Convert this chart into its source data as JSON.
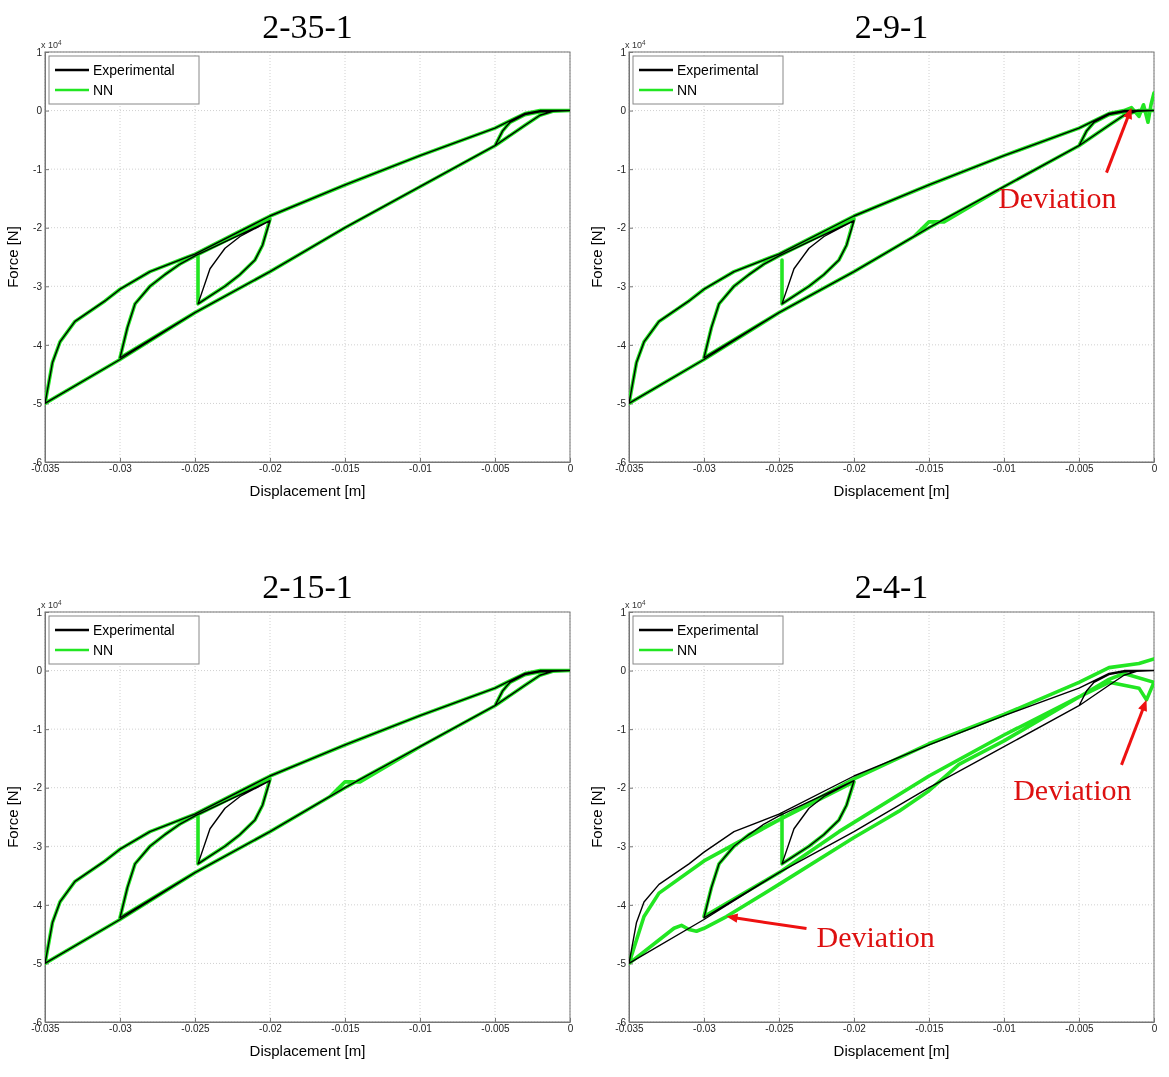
{
  "chart_data": [
    {
      "type": "line",
      "title": "2-35-1",
      "xlabel": "Displacement [m]",
      "ylabel": "Force [N]",
      "xlim": [
        -0.035,
        0
      ],
      "ylim": [
        -6,
        1
      ],
      "xticks": [
        -0.035,
        -0.03,
        -0.025,
        -0.02,
        -0.015,
        -0.01,
        -0.005,
        0
      ],
      "yticks": [
        -6,
        -5,
        -4,
        -3,
        -2,
        -1,
        0,
        1
      ],
      "grid": true,
      "legend": "top left",
      "annotations": [
        "x 10$^{4}$"
      ],
      "series": [
        {
          "name": "Experimental",
          "color": "#000000",
          "x": [
            0,
            -0.002,
            -0.003,
            -0.005,
            -0.01,
            -0.015,
            -0.02,
            -0.025,
            -0.028,
            -0.03,
            -0.031,
            -0.033,
            -0.034,
            -0.0345,
            -0.035,
            -0.03,
            -0.025,
            -0.02,
            -0.015,
            -0.01,
            -0.005,
            -0.003,
            -0.002,
            -0.001,
            0,
            -0.002,
            -0.003,
            -0.004,
            -0.0045,
            -0.005,
            -0.01,
            -0.015,
            -0.02,
            -0.025,
            -0.03,
            -0.0295,
            -0.029,
            -0.028,
            -0.027,
            -0.026,
            -0.025,
            -0.02,
            -0.0205,
            -0.021,
            -0.022,
            -0.023,
            -0.0248,
            -0.024,
            -0.023,
            -0.022,
            -0.02
          ],
          "values": [
            0,
            0,
            -0.05,
            -0.3,
            -0.77,
            -1.27,
            -1.8,
            -2.45,
            -2.75,
            -3.05,
            -3.25,
            -3.6,
            -3.95,
            -4.3,
            -5,
            -4.25,
            -3.45,
            -2.75,
            -2,
            -1.3,
            -0.6,
            -0.25,
            -0.08,
            0,
            0,
            -0.02,
            -0.07,
            -0.2,
            -0.35,
            -0.6,
            -1.3,
            -2,
            -2.75,
            -3.45,
            -4.22,
            -3.7,
            -3.3,
            -3,
            -2.8,
            -2.62,
            -2.48,
            -1.88,
            -2.3,
            -2.55,
            -2.8,
            -3,
            -3.3,
            -2.7,
            -2.35,
            -2.15,
            -1.88
          ]
        },
        {
          "name": "NN",
          "color": "#22e622",
          "x": [
            0,
            -0.002,
            -0.003,
            -0.005,
            -0.01,
            -0.015,
            -0.02,
            -0.025,
            -0.028,
            -0.03,
            -0.031,
            -0.033,
            -0.034,
            -0.0345,
            -0.035,
            -0.03,
            -0.025,
            -0.02,
            -0.015,
            -0.01,
            -0.005,
            -0.003,
            -0.002,
            -0.001,
            0,
            -0.002,
            -0.003,
            -0.004,
            -0.0045,
            -0.005,
            -0.01,
            -0.015,
            -0.02,
            -0.025,
            -0.03,
            -0.0295,
            -0.029,
            -0.028,
            -0.027,
            -0.026,
            -0.025,
            -0.02,
            -0.0205,
            -0.021,
            -0.022,
            -0.023,
            -0.0248,
            -0.0248
          ],
          "values": [
            0,
            0,
            -0.05,
            -0.3,
            -0.77,
            -1.27,
            -1.8,
            -2.45,
            -2.75,
            -3.05,
            -3.25,
            -3.6,
            -3.95,
            -4.3,
            -5,
            -4.25,
            -3.45,
            -2.75,
            -2,
            -1.3,
            -0.6,
            -0.25,
            -0.08,
            0,
            0,
            -0.02,
            -0.07,
            -0.2,
            -0.35,
            -0.6,
            -1.3,
            -2,
            -2.75,
            -3.45,
            -4.22,
            -3.7,
            -3.3,
            -3,
            -2.8,
            -2.62,
            -2.48,
            -1.85,
            -2.3,
            -2.55,
            -2.8,
            -3,
            -3.3,
            -2.45
          ]
        }
      ]
    },
    {
      "type": "line",
      "title": "2-9-1",
      "xlabel": "Displacement [m]",
      "ylabel": "Force [N]",
      "xlim": [
        -0.035,
        0
      ],
      "ylim": [
        -6,
        1
      ],
      "xticks": [
        -0.035,
        -0.03,
        -0.025,
        -0.02,
        -0.015,
        -0.01,
        -0.005,
        0
      ],
      "yticks": [
        -6,
        -5,
        -4,
        -3,
        -2,
        -1,
        0,
        1
      ],
      "grid": true,
      "legend": "top left",
      "annotations": [
        "x 10$^{4}$",
        {
          "text": "Deviation",
          "x": -0.0015,
          "y": 0.05
        }
      ],
      "series": [
        {
          "name": "Experimental",
          "color": "#000000",
          "x": [
            0,
            -0.002,
            -0.003,
            -0.005,
            -0.01,
            -0.015,
            -0.02,
            -0.025,
            -0.028,
            -0.03,
            -0.031,
            -0.033,
            -0.034,
            -0.0345,
            -0.035,
            -0.03,
            -0.025,
            -0.02,
            -0.015,
            -0.01,
            -0.005,
            -0.003,
            -0.002,
            -0.001,
            0,
            -0.002,
            -0.003,
            -0.004,
            -0.0045,
            -0.005,
            -0.01,
            -0.015,
            -0.02,
            -0.025,
            -0.03,
            -0.0295,
            -0.029,
            -0.028,
            -0.027,
            -0.026,
            -0.025,
            -0.02,
            -0.0205,
            -0.021,
            -0.022,
            -0.023,
            -0.0248,
            -0.024,
            -0.023,
            -0.022,
            -0.02
          ],
          "values": [
            0,
            0,
            -0.05,
            -0.3,
            -0.77,
            -1.27,
            -1.8,
            -2.45,
            -2.75,
            -3.05,
            -3.25,
            -3.6,
            -3.95,
            -4.3,
            -5,
            -4.25,
            -3.45,
            -2.75,
            -2,
            -1.3,
            -0.6,
            -0.25,
            -0.08,
            0,
            0,
            -0.02,
            -0.07,
            -0.2,
            -0.35,
            -0.6,
            -1.3,
            -2,
            -2.75,
            -3.45,
            -4.22,
            -3.7,
            -3.3,
            -3,
            -2.8,
            -2.62,
            -2.48,
            -1.88,
            -2.3,
            -2.55,
            -2.8,
            -3,
            -3.3,
            -2.7,
            -2.35,
            -2.15,
            -1.88
          ]
        },
        {
          "name": "NN",
          "color": "#22e622",
          "x": [
            0,
            -0.0002,
            -0.0004,
            -0.0007,
            -0.001,
            -0.0015,
            -0.002,
            -0.003,
            -0.005,
            -0.01,
            -0.015,
            -0.02,
            -0.025,
            -0.028,
            -0.03,
            -0.031,
            -0.033,
            -0.034,
            -0.0345,
            -0.035,
            -0.03,
            -0.025,
            -0.02,
            -0.016,
            -0.015,
            -0.014,
            -0.01,
            -0.005,
            -0.003,
            -0.002,
            -0.001,
            0,
            -0.002,
            -0.003,
            -0.004,
            -0.0045,
            -0.005,
            -0.01,
            -0.015,
            -0.02,
            -0.025,
            -0.03,
            -0.0295,
            -0.029,
            -0.028,
            -0.027,
            -0.026,
            -0.025,
            -0.02,
            -0.0205,
            -0.021,
            -0.022,
            -0.023,
            -0.0248,
            -0.0248
          ],
          "values": [
            0.3,
            0.1,
            -0.2,
            0.1,
            -0.1,
            0.05,
            0,
            -0.05,
            -0.3,
            -0.77,
            -1.27,
            -1.8,
            -2.45,
            -2.75,
            -3.05,
            -3.25,
            -3.6,
            -3.95,
            -4.3,
            -5,
            -4.25,
            -3.45,
            -2.75,
            -2.15,
            -1.9,
            -1.9,
            -1.3,
            -0.6,
            -0.25,
            -0.08,
            0,
            0,
            -0.02,
            -0.07,
            -0.2,
            -0.35,
            -0.6,
            -1.3,
            -2,
            -2.75,
            -3.45,
            -4.22,
            -3.7,
            -3.3,
            -3,
            -2.8,
            -2.62,
            -2.48,
            -1.85,
            -2.3,
            -2.55,
            -2.8,
            -3,
            -3.3,
            -2.55
          ]
        }
      ]
    },
    {
      "type": "line",
      "title": "2-15-1",
      "xlabel": "Displacement [m]",
      "ylabel": "Force [N]",
      "xlim": [
        -0.035,
        0
      ],
      "ylim": [
        -6,
        1
      ],
      "xticks": [
        -0.035,
        -0.03,
        -0.025,
        -0.02,
        -0.015,
        -0.01,
        -0.005,
        0
      ],
      "yticks": [
        -6,
        -5,
        -4,
        -3,
        -2,
        -1,
        0,
        1
      ],
      "grid": true,
      "legend": "top left",
      "annotations": [
        "x 10$^{4}$"
      ],
      "series": [
        {
          "name": "Experimental",
          "color": "#000000",
          "x": [
            0,
            -0.002,
            -0.003,
            -0.005,
            -0.01,
            -0.015,
            -0.02,
            -0.025,
            -0.028,
            -0.03,
            -0.031,
            -0.033,
            -0.034,
            -0.0345,
            -0.035,
            -0.03,
            -0.025,
            -0.02,
            -0.015,
            -0.01,
            -0.005,
            -0.003,
            -0.002,
            -0.001,
            0,
            -0.002,
            -0.003,
            -0.004,
            -0.0045,
            -0.005,
            -0.01,
            -0.015,
            -0.02,
            -0.025,
            -0.03,
            -0.0295,
            -0.029,
            -0.028,
            -0.027,
            -0.026,
            -0.025,
            -0.02,
            -0.0205,
            -0.021,
            -0.022,
            -0.023,
            -0.0248,
            -0.024,
            -0.023,
            -0.022,
            -0.02
          ],
          "values": [
            0,
            0,
            -0.05,
            -0.3,
            -0.77,
            -1.27,
            -1.8,
            -2.45,
            -2.75,
            -3.05,
            -3.25,
            -3.6,
            -3.95,
            -4.3,
            -5,
            -4.25,
            -3.45,
            -2.75,
            -2,
            -1.3,
            -0.6,
            -0.25,
            -0.08,
            0,
            0,
            -0.02,
            -0.07,
            -0.2,
            -0.35,
            -0.6,
            -1.3,
            -2,
            -2.75,
            -3.45,
            -4.22,
            -3.7,
            -3.3,
            -3,
            -2.8,
            -2.62,
            -2.48,
            -1.88,
            -2.3,
            -2.55,
            -2.8,
            -3,
            -3.3,
            -2.7,
            -2.35,
            -2.15,
            -1.88
          ]
        },
        {
          "name": "NN",
          "color": "#22e622",
          "x": [
            0,
            -0.002,
            -0.003,
            -0.005,
            -0.01,
            -0.015,
            -0.02,
            -0.025,
            -0.028,
            -0.03,
            -0.031,
            -0.033,
            -0.034,
            -0.0345,
            -0.035,
            -0.03,
            -0.025,
            -0.02,
            -0.016,
            -0.015,
            -0.014,
            -0.01,
            -0.005,
            -0.003,
            -0.002,
            -0.001,
            0,
            -0.002,
            -0.003,
            -0.004,
            -0.0045,
            -0.005,
            -0.01,
            -0.015,
            -0.02,
            -0.025,
            -0.03,
            -0.0295,
            -0.029,
            -0.028,
            -0.027,
            -0.026,
            -0.025,
            -0.02,
            -0.0205,
            -0.021,
            -0.022,
            -0.023,
            -0.0248,
            -0.0248
          ],
          "values": [
            0,
            0,
            -0.05,
            -0.3,
            -0.77,
            -1.27,
            -1.8,
            -2.45,
            -2.75,
            -3.05,
            -3.25,
            -3.6,
            -3.95,
            -4.3,
            -5,
            -4.25,
            -3.45,
            -2.75,
            -2.15,
            -1.9,
            -1.9,
            -1.3,
            -0.6,
            -0.25,
            -0.08,
            0,
            0,
            -0.02,
            -0.07,
            -0.2,
            -0.35,
            -0.6,
            -1.3,
            -2,
            -2.75,
            -3.45,
            -4.22,
            -3.7,
            -3.3,
            -3,
            -2.8,
            -2.62,
            -2.48,
            -1.85,
            -2.3,
            -2.55,
            -2.8,
            -3,
            -3.3,
            -2.45
          ]
        }
      ]
    },
    {
      "type": "line",
      "title": "2-4-1",
      "xlabel": "Displacement [m]",
      "ylabel": "Force [N]",
      "xlim": [
        -0.035,
        0
      ],
      "ylim": [
        -6,
        1
      ],
      "xticks": [
        -0.035,
        -0.03,
        -0.025,
        -0.02,
        -0.015,
        -0.01,
        -0.005,
        0
      ],
      "yticks": [
        -6,
        -5,
        -4,
        -3,
        -2,
        -1,
        0,
        1
      ],
      "grid": true,
      "legend": "top left",
      "annotations": [
        "x 10$^{4}$",
        {
          "text": "Deviation",
          "x": -0.0005,
          "y": -0.5
        },
        {
          "text": "Deviation",
          "x": -0.0285,
          "y": -4.2
        }
      ],
      "series": [
        {
          "name": "Experimental",
          "color": "#000000",
          "x": [
            0,
            -0.002,
            -0.003,
            -0.005,
            -0.01,
            -0.015,
            -0.02,
            -0.025,
            -0.028,
            -0.03,
            -0.031,
            -0.033,
            -0.034,
            -0.0345,
            -0.035,
            -0.03,
            -0.025,
            -0.02,
            -0.015,
            -0.01,
            -0.005,
            -0.003,
            -0.002,
            -0.001,
            0,
            -0.002,
            -0.003,
            -0.004,
            -0.0045,
            -0.005,
            -0.01,
            -0.015,
            -0.02,
            -0.025,
            -0.03,
            -0.0295,
            -0.029,
            -0.028,
            -0.027,
            -0.026,
            -0.025,
            -0.02,
            -0.0205,
            -0.021,
            -0.022,
            -0.023,
            -0.0248,
            -0.024,
            -0.023,
            -0.022,
            -0.02
          ],
          "values": [
            0,
            0,
            -0.05,
            -0.3,
            -0.77,
            -1.27,
            -1.8,
            -2.45,
            -2.75,
            -3.1,
            -3.3,
            -3.65,
            -3.95,
            -4.3,
            -5,
            -4.25,
            -3.45,
            -2.75,
            -2,
            -1.3,
            -0.6,
            -0.25,
            -0.08,
            0,
            0,
            -0.02,
            -0.07,
            -0.2,
            -0.35,
            -0.6,
            -1.3,
            -2,
            -2.75,
            -3.45,
            -4.22,
            -3.7,
            -3.3,
            -3,
            -2.8,
            -2.62,
            -2.48,
            -1.88,
            -2.3,
            -2.55,
            -2.8,
            -3,
            -3.3,
            -2.7,
            -2.35,
            -2.15,
            -1.88
          ]
        },
        {
          "name": "NN",
          "color": "#22e622",
          "x": [
            0,
            -0.001,
            -0.003,
            -0.005,
            -0.01,
            -0.015,
            -0.02,
            -0.025,
            -0.03,
            -0.033,
            -0.034,
            -0.035,
            -0.033,
            -0.032,
            -0.0315,
            -0.031,
            -0.0305,
            -0.03,
            -0.0285,
            -0.025,
            -0.02,
            -0.018,
            -0.017,
            -0.015,
            -0.013,
            -0.01,
            -0.005,
            -0.003,
            -0.002,
            -0.001,
            -0.0005,
            0,
            -0.002,
            -0.003,
            -0.005,
            -0.01,
            -0.015,
            -0.021,
            -0.025,
            -0.03,
            -0.0295,
            -0.029,
            -0.028,
            -0.027,
            -0.025,
            -0.02,
            -0.0205,
            -0.021,
            -0.022,
            -0.023,
            -0.0248,
            -0.0248
          ],
          "values": [
            0.2,
            0.12,
            0.05,
            -0.2,
            -0.75,
            -1.25,
            -1.85,
            -2.55,
            -3.25,
            -3.8,
            -4.2,
            -5,
            -4.6,
            -4.4,
            -4.35,
            -4.42,
            -4.45,
            -4.4,
            -4.2,
            -3.65,
            -2.85,
            -2.55,
            -2.4,
            -2.05,
            -1.6,
            -1.2,
            -0.45,
            -0.2,
            -0.25,
            -0.3,
            -0.5,
            -0.2,
            -0.05,
            -0.15,
            -0.45,
            -1.1,
            -1.8,
            -2.75,
            -3.45,
            -4.2,
            -3.7,
            -3.3,
            -3,
            -2.8,
            -2.55,
            -1.9,
            -2.3,
            -2.55,
            -2.8,
            -3,
            -3.3,
            -2.45
          ]
        }
      ]
    }
  ]
}
